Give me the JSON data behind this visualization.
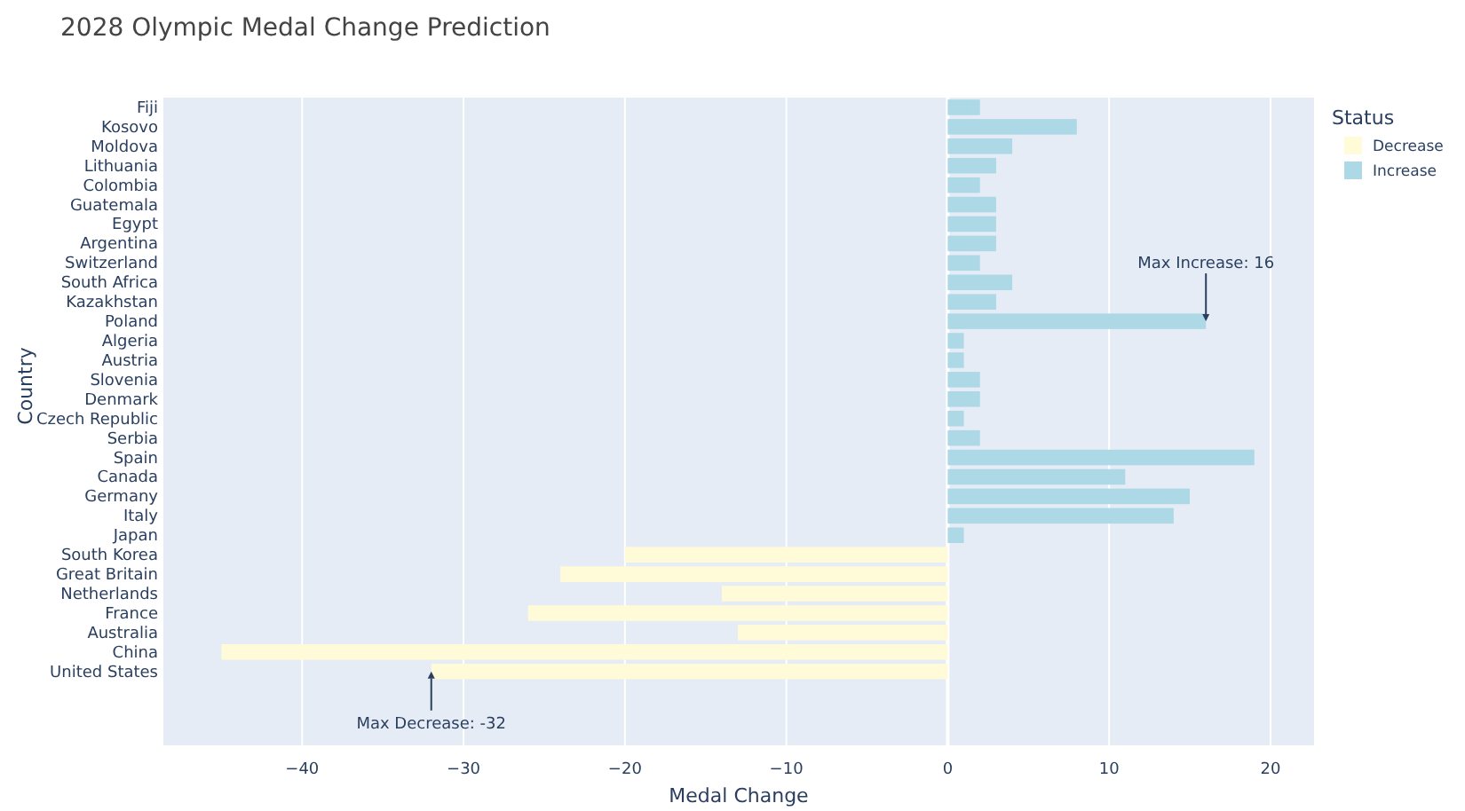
{
  "chart_data": {
    "type": "bar",
    "orientation": "horizontal",
    "title": "2028 Olympic Medal Change Prediction",
    "xlabel": "Medal Change",
    "ylabel": "Country",
    "legend_title": "Status",
    "legend": "top right",
    "grid": "x",
    "categories": [
      "Fiji",
      "Kosovo",
      "Moldova",
      "Lithuania",
      "Colombia",
      "Guatemala",
      "Egypt",
      "Argentina",
      "Switzerland",
      "South Africa",
      "Kazakhstan",
      "Poland",
      "Algeria",
      "Austria",
      "Slovenia",
      "Denmark",
      "Czech Republic",
      "Serbia",
      "Spain",
      "Canada",
      "Germany",
      "Italy",
      "Japan",
      "South Korea",
      "Great Britain",
      "Netherlands",
      "France",
      "Australia",
      "China",
      "United States"
    ],
    "series": [
      {
        "name": "Decrease",
        "color": "#fffbd8",
        "values": [
          null,
          null,
          null,
          null,
          null,
          null,
          null,
          null,
          null,
          null,
          null,
          null,
          null,
          null,
          null,
          null,
          null,
          null,
          null,
          null,
          null,
          null,
          null,
          -20,
          -24,
          -14,
          -26,
          -13,
          -45,
          -32
        ]
      },
      {
        "name": "Increase",
        "color": "#add8e6",
        "values": [
          2,
          8,
          4,
          3,
          2,
          3,
          3,
          3,
          2,
          4,
          3,
          16,
          1,
          1,
          2,
          2,
          1,
          2,
          19,
          11,
          15,
          14,
          1,
          null,
          null,
          null,
          null,
          null,
          null,
          null
        ]
      }
    ],
    "xlim": [
      -48.6,
      22.7
    ],
    "xticks": [
      {
        "value": -40,
        "label": "−40"
      },
      {
        "value": -30,
        "label": "−30"
      },
      {
        "value": -20,
        "label": "−20"
      },
      {
        "value": -10,
        "label": "−10"
      },
      0,
      10,
      20
    ],
    "annotations": [
      {
        "text": "Max Increase: 16",
        "x": 16,
        "y": "Poland"
      },
      {
        "text": "Max Decrease: -32",
        "x": -32,
        "y": "United States"
      }
    ]
  }
}
